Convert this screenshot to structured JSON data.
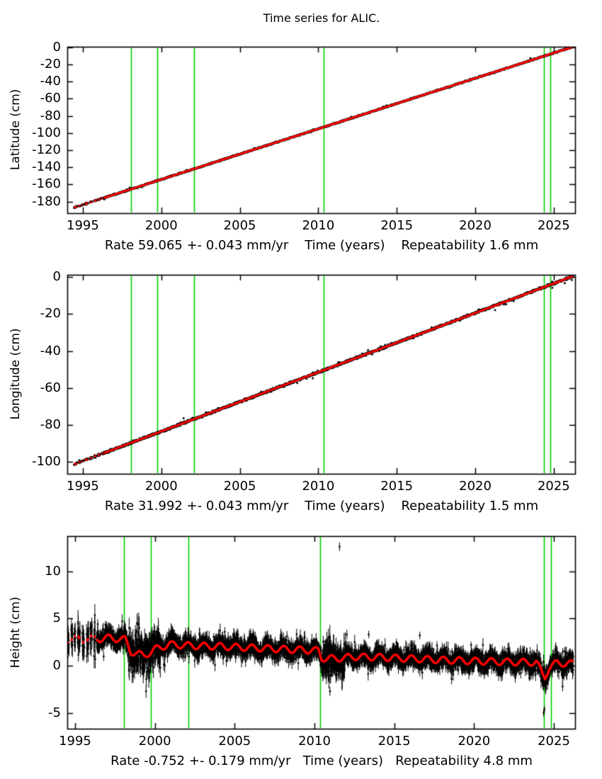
{
  "title": "Time series for ALIC.",
  "station": "ALIC",
  "colors": {
    "background": "#ffffff",
    "data_points": "#000000",
    "fit_line": "#ff0000",
    "event_line": "#00cf00",
    "frame": "#000000"
  },
  "event_years": [
    1998.05,
    1999.75,
    2002.1,
    2010.35,
    2024.38,
    2024.8
  ],
  "sparse_segments": [
    [
      1994.45,
      1994.62
    ],
    [
      1994.75,
      1994.85
    ],
    [
      1994.95,
      1995.03
    ],
    [
      1995.15,
      1995.32
    ],
    [
      1995.45,
      1995.58
    ],
    [
      1995.72,
      1995.86
    ],
    [
      1995.95,
      1996.08
    ],
    [
      1996.18,
      1996.28
    ]
  ],
  "dense_range": [
    1996.35,
    2026.22
  ],
  "render": {
    "seed": 11
  },
  "chart_data": [
    {
      "name": "latitude",
      "type": "scatter",
      "ylabel": "Latitude (cm)",
      "xlabel": "Rate 59.065 +- 0.043 mm/yr    Time (years)    Repeatability 1.6 mm",
      "rate_mm_per_yr": 59.065,
      "rate_sigma_mm_per_yr": 0.043,
      "repeatability_mm": 1.6,
      "xticks": [
        1995,
        2000,
        2005,
        2010,
        2015,
        2020,
        2025
      ],
      "yticks": [
        0,
        -20,
        -40,
        -60,
        -80,
        -100,
        -120,
        -140,
        -160,
        -180
      ],
      "xlim": [
        1994.01,
        2026.36
      ],
      "ylim": [
        -193.6,
        0.8
      ],
      "trend": {
        "rate_cm_per_yr": 5.9065,
        "zero_crossing_year": 2026.1
      },
      "scatter_sigma_cm": 0.35
    },
    {
      "name": "longitude",
      "type": "scatter",
      "ylabel": "Longitude (cm)",
      "xlabel": "Rate 31.992 +- 0.043 mm/yr    Time (years)    Repeatability 1.5 mm",
      "rate_mm_per_yr": 31.992,
      "rate_sigma_mm_per_yr": 0.043,
      "repeatability_mm": 1.5,
      "xticks": [
        1995,
        2000,
        2005,
        2010,
        2015,
        2020,
        2025
      ],
      "yticks": [
        0,
        -20,
        -40,
        -60,
        -80,
        -100
      ],
      "xlim": [
        1994.01,
        2026.36
      ],
      "ylim": [
        -106.4,
        1.15
      ],
      "trend": {
        "rate_cm_per_yr": 3.1992,
        "zero_crossing_year": 2026.1
      },
      "scatter_sigma_cm": 0.3
    },
    {
      "name": "height",
      "type": "scatter",
      "ylabel": "Height (cm)",
      "xlabel": "Rate -0.752 +- 0.179 mm/yr   Time (years)   Repeatability 4.8 mm",
      "rate_mm_per_yr": -0.752,
      "rate_sigma_mm_per_yr": 0.179,
      "repeatability_mm": 4.8,
      "xticks": [
        1995,
        2000,
        2005,
        2010,
        2015,
        2020,
        2025
      ],
      "yticks": [
        -5,
        0,
        5,
        10
      ],
      "xlim": [
        1994.512,
        2026.33
      ],
      "ylim": [
        -6.67,
        13.72
      ],
      "fit_mean_knots": [
        [
          1994.45,
          2.8
        ],
        [
          1996.5,
          2.85
        ],
        [
          1997.2,
          2.95
        ],
        [
          1998.15,
          2.75
        ],
        [
          1998.5,
          1.5
        ],
        [
          1999.3,
          1.05
        ],
        [
          2000.1,
          1.8
        ],
        [
          2000.9,
          2.25
        ],
        [
          2002.5,
          2.1
        ],
        [
          2004.0,
          2.05
        ],
        [
          2006.0,
          1.9
        ],
        [
          2008.0,
          1.75
        ],
        [
          2010.25,
          1.6
        ],
        [
          2010.45,
          0.8
        ],
        [
          2011.3,
          0.75
        ],
        [
          2012.5,
          0.95
        ],
        [
          2014.0,
          0.9
        ],
        [
          2016.0,
          0.75
        ],
        [
          2018.0,
          0.6
        ],
        [
          2020.0,
          0.5
        ],
        [
          2022.0,
          0.4
        ],
        [
          2023.9,
          0.35
        ],
        [
          2024.3,
          -0.9
        ],
        [
          2024.45,
          -1.15
        ],
        [
          2024.7,
          -0.2
        ],
        [
          2025.2,
          0.3
        ],
        [
          2026.2,
          0.2
        ]
      ],
      "seasonal": {
        "amplitude_cm": 0.35,
        "period_yr": 1,
        "phase_yr": 0.08
      },
      "scatter_sigma_cm": 0.5,
      "errorbar_halflength_cm": [
        0.35,
        0.8
      ],
      "noise_windows": [
        {
          "range": [
            1998.35,
            2000.35
          ],
          "sigma_cm": 1.0
        },
        {
          "range": [
            2010.5,
            2011.95
          ],
          "sigma_cm": 0.85
        },
        {
          "range": [
            1994.4,
            1996.35
          ],
          "sigma_cm": 0.8
        }
      ],
      "outliers": [
        [
          2011.57,
          12.6,
          0.45
        ],
        [
          2024.36,
          -5.0,
          0.4
        ],
        [
          2024.41,
          -4.6,
          0.35
        ],
        [
          1999.45,
          -2.7,
          0.7
        ],
        [
          2010.97,
          -2.7,
          0.5
        ],
        [
          2012.03,
          3.3,
          0.5
        ],
        [
          2016.6,
          3.2,
          0.4
        ],
        [
          2013.4,
          3.3,
          0.4
        ],
        [
          2025.55,
          -2.2,
          0.5
        ]
      ]
    }
  ]
}
